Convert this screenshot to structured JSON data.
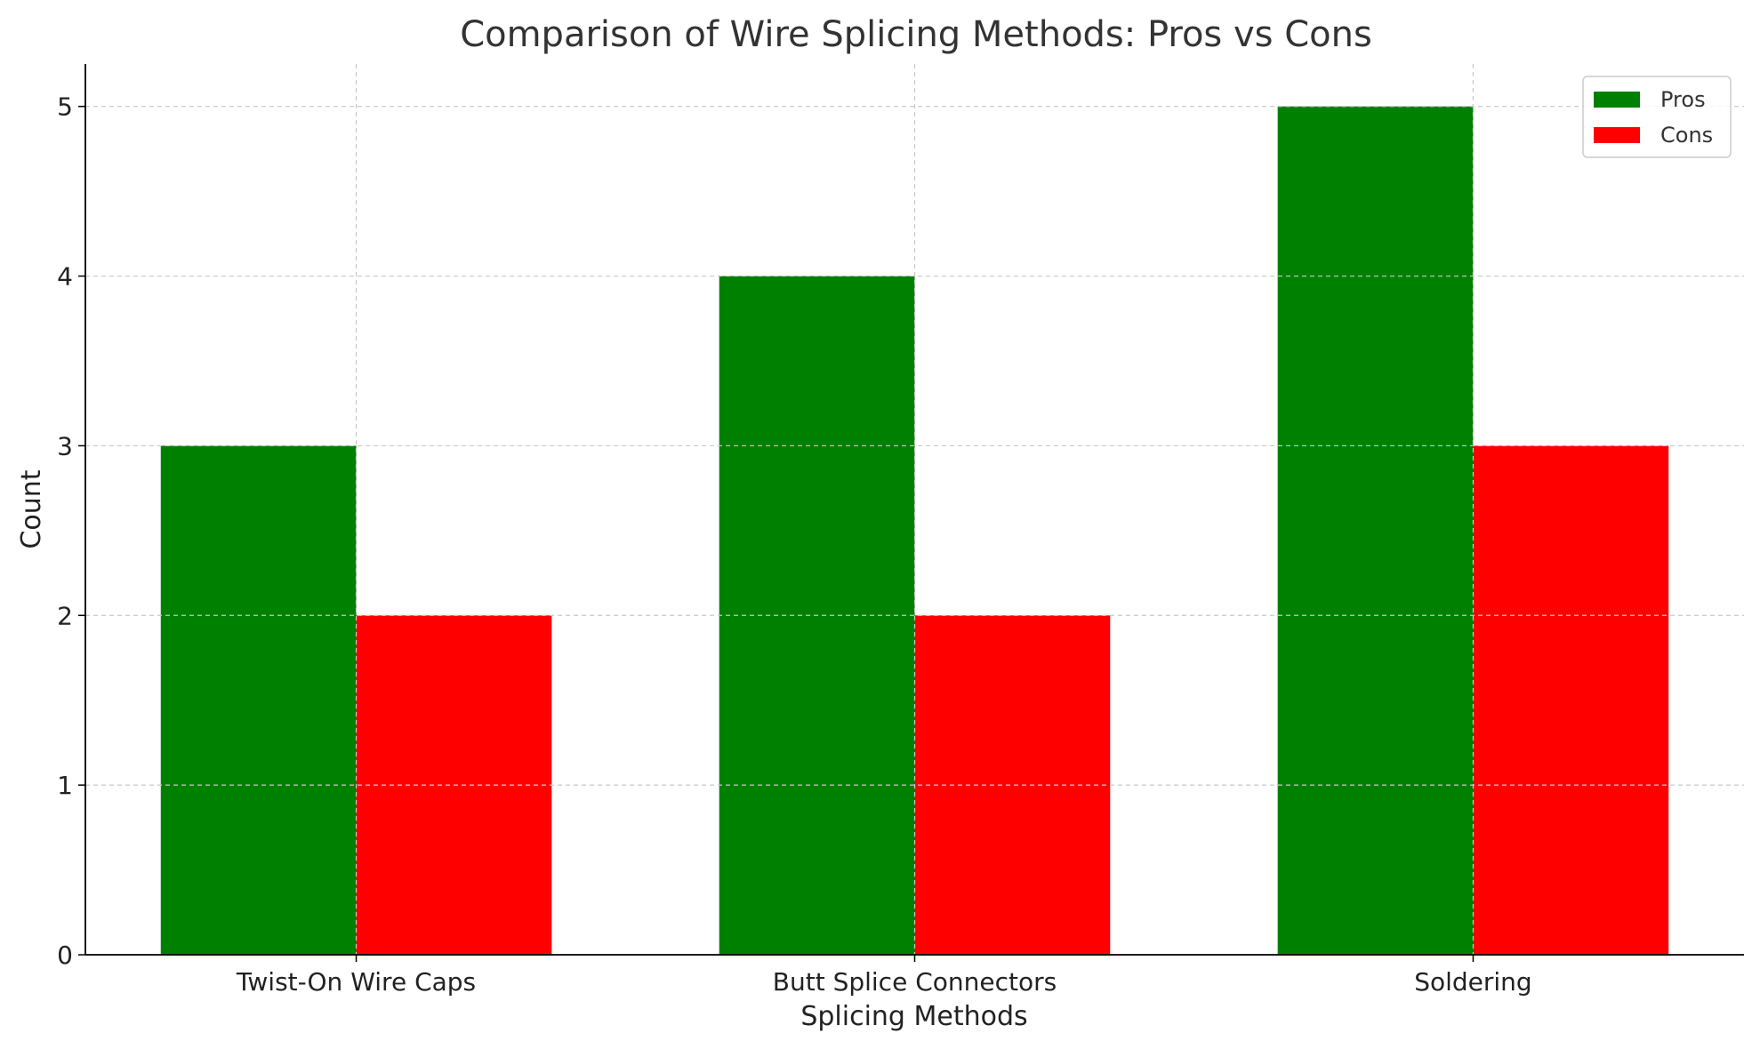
{
  "chart_data": {
    "type": "bar",
    "title": "Comparison of Wire Splicing Methods: Pros vs Cons",
    "xlabel": "Splicing Methods",
    "ylabel": "Count",
    "categories": [
      "Twist-On Wire Caps",
      "Butt Splice Connectors",
      "Soldering"
    ],
    "series": [
      {
        "name": "Pros",
        "values": [
          3,
          4,
          5
        ],
        "color": "#008000"
      },
      {
        "name": "Cons",
        "values": [
          2,
          2,
          3
        ],
        "color": "#ff0000"
      }
    ],
    "ylim": [
      0,
      5.25
    ],
    "yticks": [
      0,
      1,
      2,
      3,
      4,
      5
    ],
    "grid": true,
    "legend_position": "top-right"
  }
}
